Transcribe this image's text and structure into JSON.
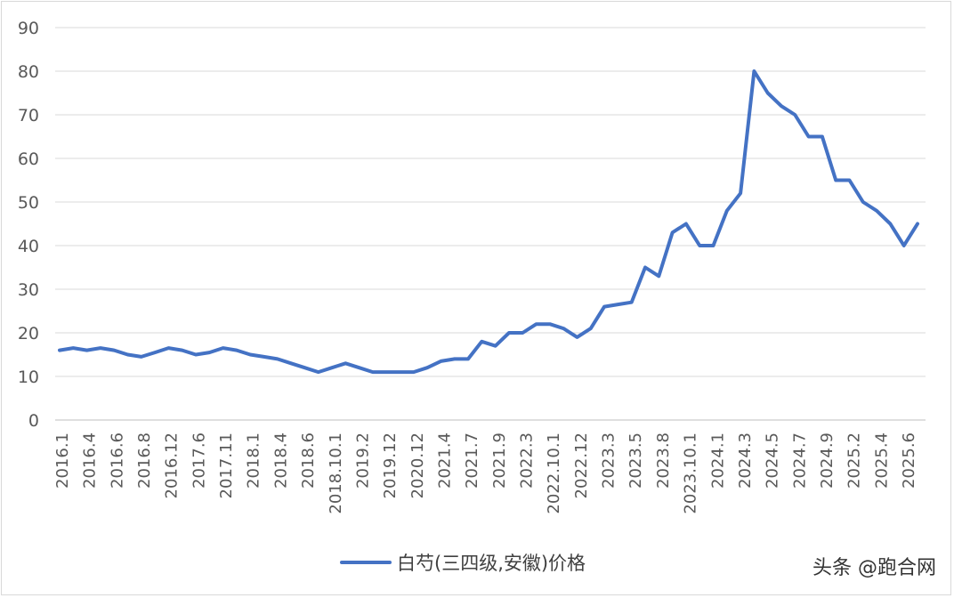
{
  "chart_data": {
    "type": "line",
    "title": "",
    "xlabel": "",
    "ylabel": "",
    "ylim": [
      0,
      90
    ],
    "yticks": [
      0,
      10,
      20,
      30,
      40,
      50,
      60,
      70,
      80,
      90
    ],
    "grid": "horizontal",
    "legend_position": "bottom",
    "x_tick_labels": [
      "2016.1",
      "2016.4",
      "2016.6",
      "2016.8",
      "2016.12",
      "2017.6",
      "2017.11",
      "2018.1",
      "2018.4",
      "2018.6",
      "2018.10.1",
      "2019.2",
      "2019.12",
      "2020.12",
      "2021.4",
      "2021.7",
      "2021.9",
      "2022.3",
      "2022.10.1",
      "2022.12",
      "2023.3",
      "2023.5",
      "2023.8",
      "2023.10.1",
      "2024.1",
      "2024.3",
      "2024.5",
      "2024.7",
      "2024.9",
      "2025.2",
      "2025.4",
      "2025.6"
    ],
    "series": [
      {
        "name": "白芍(三四级,安徽)价格",
        "color": "#4472C4",
        "values": [
          16,
          16.5,
          16,
          16.5,
          16,
          15,
          14.5,
          15.5,
          16.5,
          16,
          15,
          15.5,
          16.5,
          16,
          15,
          14.5,
          14,
          13,
          12,
          11,
          12,
          13,
          12,
          11,
          11,
          11,
          11,
          12,
          13.5,
          14,
          14,
          18,
          17,
          20,
          20,
          22,
          22,
          21,
          19,
          21,
          26,
          26.5,
          27,
          35,
          33,
          43,
          45,
          40,
          40,
          48,
          52,
          80,
          75,
          72,
          70,
          65,
          65,
          55,
          55,
          50,
          48,
          45,
          40,
          45
        ]
      }
    ]
  },
  "watermark": "头条 @跑合网"
}
